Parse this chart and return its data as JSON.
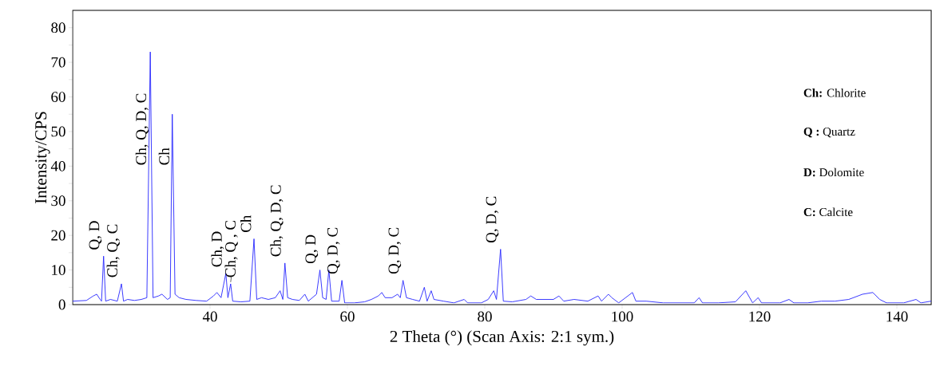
{
  "chart_data": {
    "type": "line",
    "xlabel": "2 Theta (°) (Scan Axis: 2:1 sym.)",
    "ylabel": "Intensity/CPS",
    "xlim": [
      20,
      145
    ],
    "ylim": [
      0,
      85
    ],
    "xticks": [
      40,
      60,
      80,
      100,
      120,
      140
    ],
    "yticks": [
      0,
      {
        "value": 5,
        "label": null
      },
      10,
      {
        "value": 15,
        "label": null
      },
      20,
      {
        "value": 25,
        "label": null
      },
      30,
      {
        "value": 35,
        "label": null
      },
      40,
      {
        "value": 45,
        "label": null
      },
      50,
      {
        "value": 55,
        "label": null
      },
      60,
      {
        "value": 65,
        "label": null
      },
      70,
      {
        "value": 75,
        "label": null
      },
      80
    ],
    "grid": false,
    "series": [
      {
        "color": "#2626ff",
        "x": [
          20,
          22,
          23,
          23.5,
          24,
          24.2,
          24.5,
          24.8,
          25.5,
          26.5,
          27.1,
          27.4,
          28,
          29,
          30,
          30.8,
          31.3,
          31.7,
          32.5,
          33,
          33.8,
          34.2,
          34.5,
          34.9,
          35.5,
          36.5,
          38,
          39.5,
          40.5,
          41,
          41.6,
          42.3,
          42.6,
          43.0,
          43.3,
          44.5,
          45.8,
          46.4,
          46.8,
          47.5,
          48.5,
          49.5,
          50.2,
          50.6,
          50.9,
          51.3,
          52,
          53,
          53.8,
          54.3,
          55.5,
          56.0,
          56.4,
          56.9,
          57.3,
          57.7,
          58.8,
          59.2,
          59.6,
          61,
          62.5,
          63.5,
          64.5,
          65,
          65.5,
          66.5,
          67.3,
          67.7,
          68.1,
          68.6,
          69.5,
          70.5,
          71.2,
          71.6,
          72.2,
          72.6,
          74,
          75.5,
          77,
          77.5,
          79.5,
          80.5,
          81.3,
          81.7,
          82.3,
          82.7,
          84,
          86,
          86.7,
          87.5,
          90,
          90.8,
          91.5,
          93,
          95,
          96.5,
          97,
          98,
          98.5,
          99.5,
          101.5,
          102,
          103.5,
          106,
          109,
          110.5,
          111.2,
          111.7,
          114,
          116.5,
          118,
          119,
          119.8,
          120.3,
          123,
          124.3,
          125,
          127,
          129,
          131,
          133,
          135,
          136.5,
          137.5,
          138.5,
          141,
          142.8,
          143.5,
          145
        ],
        "values": [
          1,
          1.2,
          2.5,
          3,
          1.5,
          1,
          14,
          1,
          1.5,
          1,
          6,
          1,
          1.5,
          1.2,
          1.5,
          2,
          73,
          2,
          2.5,
          3,
          1.5,
          2,
          55,
          3,
          2,
          1.5,
          1.2,
          1,
          2.5,
          3.5,
          2,
          9,
          2,
          6,
          1,
          0.8,
          1,
          19,
          1.5,
          2,
          1.5,
          2,
          4,
          1.5,
          12,
          2,
          1.5,
          1.2,
          3,
          1,
          3,
          10,
          2,
          1.5,
          10,
          1,
          1,
          7,
          0.5,
          0.5,
          0.8,
          1.5,
          2.5,
          3.5,
          2,
          2,
          3,
          2,
          7,
          2,
          1.5,
          1,
          5,
          1,
          4,
          1.5,
          1,
          0.5,
          1.5,
          0.5,
          0.5,
          1.5,
          4,
          1.5,
          16,
          1,
          0.8,
          1.5,
          2.5,
          1.5,
          1.5,
          2.5,
          1,
          1.5,
          1,
          2.5,
          1,
          3,
          2,
          0.5,
          3.5,
          1,
          1,
          0.5,
          0.5,
          0.5,
          2,
          0.5,
          0.5,
          0.8,
          4,
          0.5,
          2,
          0.5,
          0.5,
          1.5,
          0.5,
          0.5,
          1,
          1,
          1.5,
          3,
          3.5,
          1.5,
          0.5,
          0.5,
          1.5,
          0.5,
          1
        ]
      }
    ],
    "annotations": [
      {
        "text": "Q, D",
        "x": 24.5,
        "y": 14
      },
      {
        "text": "Ch, Q, C",
        "x": 27.1,
        "y": 6
      },
      {
        "text": "Ch, Q, D, C",
        "x": 31.3,
        "y": 73
      },
      {
        "text": "Ch",
        "x": 34.5,
        "y": 55
      },
      {
        "text": "Ch, D",
        "x": 42.3,
        "y": 9
      },
      {
        "text": "Ch, Q , C",
        "x": 43.0,
        "y": 6
      },
      {
        "text": "Ch",
        "x": 46.4,
        "y": 19
      },
      {
        "text": "Ch, Q, D, C",
        "x": 50.9,
        "y": 12
      },
      {
        "text": "Q, D",
        "x": 56.0,
        "y": 10
      },
      {
        "text": "Q, D, C",
        "x": 59.2,
        "y": 7
      },
      {
        "text": "Q, D, C",
        "x": 68.1,
        "y": 7
      },
      {
        "text": "Q, D, C",
        "x": 82.3,
        "y": 16
      },
      "**Ch:** Chlorite",
      "**Q :** Quartz",
      "**D:** Dolomite",
      "**C:** Calcite"
    ]
  }
}
